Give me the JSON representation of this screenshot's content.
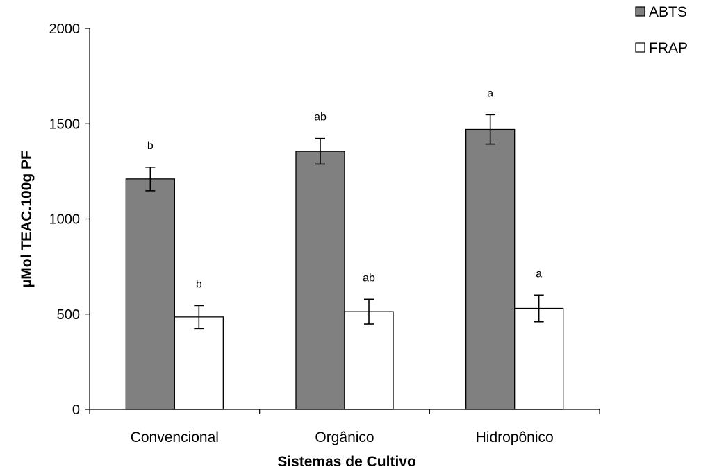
{
  "chart_data": {
    "type": "bar",
    "title": "",
    "xlabel": "Sistemas de Cultivo",
    "ylabel": "µMol TEAC.100g PF",
    "ylim": [
      0,
      2000
    ],
    "yticks": [
      0,
      500,
      1000,
      1500,
      2000
    ],
    "categories": [
      "Convencional",
      "Orgânico",
      "Hidropônico"
    ],
    "series": [
      {
        "name": "ABTS",
        "color": "#808080",
        "values": [
          1210,
          1355,
          1470
        ],
        "error": [
          62,
          67,
          77
        ],
        "significance": [
          "b",
          "ab",
          "a"
        ]
      },
      {
        "name": "FRAP",
        "color": "#ffffff",
        "values": [
          485,
          513,
          530
        ],
        "error": [
          60,
          65,
          70
        ],
        "significance": [
          "b",
          "ab",
          "a"
        ]
      }
    ],
    "legend_position": "top-right",
    "grid": false
  }
}
